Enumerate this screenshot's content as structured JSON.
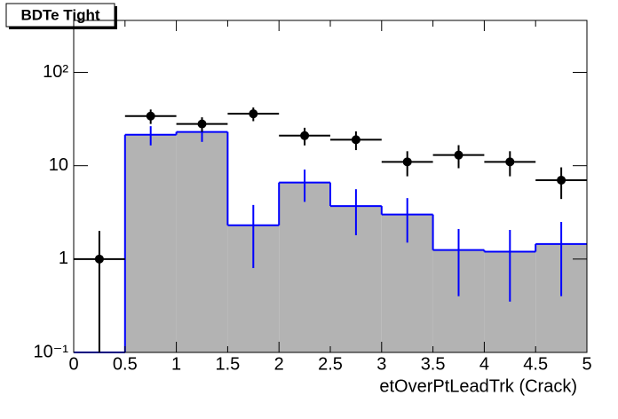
{
  "chart_data": {
    "type": "histogram",
    "title": "BDTe Tight",
    "x_label": "etOverPtLeadTrk (Crack)",
    "bins": [
      0,
      0.5,
      1,
      1.5,
      2,
      2.5,
      3,
      3.5,
      4,
      4.5,
      5
    ],
    "series": [
      {
        "style": "filled",
        "color": "#0000ff",
        "fill": "#b3b3b3",
        "values": [
          0,
          21.5,
          23,
          2.3,
          6.6,
          3.7,
          3.0,
          1.25,
          1.2,
          1.45
        ],
        "errors": [
          0,
          5,
          5,
          1.5,
          2.5,
          1.9,
          1.5,
          0.85,
          0.85,
          1.05
        ]
      },
      {
        "style": "points",
        "color": "#000000",
        "values": [
          1,
          34,
          28,
          36,
          21,
          19,
          11,
          13,
          11,
          7
        ],
        "errors": [
          1,
          6,
          5,
          6,
          4.5,
          4.3,
          3.3,
          3.6,
          3.3,
          2.6
        ]
      }
    ],
    "xlim": [
      0,
      5
    ],
    "xticks": [
      0,
      0.5,
      1,
      1.5,
      2,
      2.5,
      3,
      3.5,
      4,
      4.5,
      5
    ],
    "ylim": [
      0.1,
      360
    ],
    "log_y": true,
    "yticks": [
      {
        "value": 0.1,
        "label": "10⁻¹"
      },
      1,
      10,
      {
        "value": 100,
        "label": "10²"
      }
    ]
  }
}
